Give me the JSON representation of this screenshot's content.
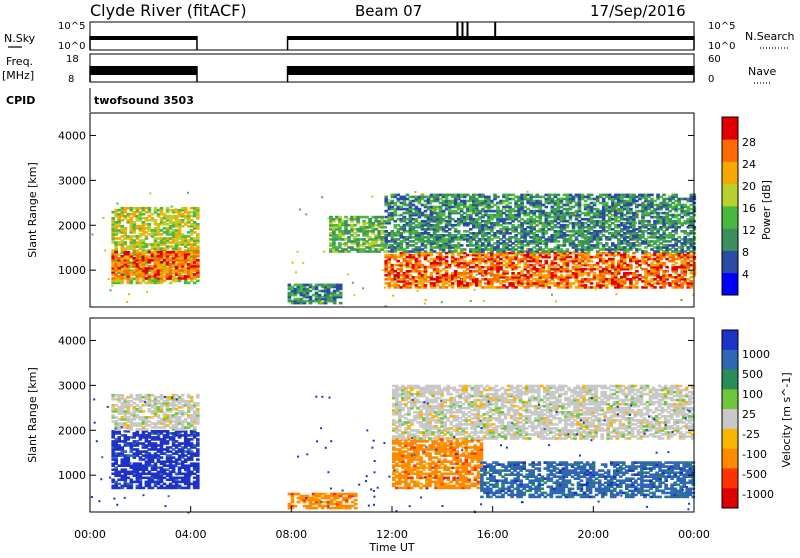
{
  "header": {
    "station": "Clyde River (fitACF)",
    "beam": "Beam 07",
    "date": "17/Sep/2016"
  },
  "strip_labels": {
    "nsky": "N.Sky",
    "nsky_ticks": [
      "10^5",
      "10^0"
    ],
    "freq": "Freq.",
    "freq_unit": "[MHz]",
    "freq_ticks": [
      "18",
      "8"
    ],
    "cpid": "CPID",
    "cpid_value": "twofsound 3503",
    "nsearch": "N.Search",
    "nsearch_ticks": [
      "10^5",
      "10^0"
    ],
    "nave": "Nave",
    "nave_ticks": [
      "60",
      "0"
    ]
  },
  "axes": {
    "time_ticks": [
      "00:00",
      "04:00",
      "08:00",
      "12:00",
      "16:00",
      "20:00",
      "00:00"
    ],
    "xlabel": "Time UT",
    "ylabel": "Slant Range [km]",
    "range_ticks": [
      "1000",
      "2000",
      "3000",
      "4000"
    ]
  },
  "colors": {
    "power": [
      "#0000ff",
      "#2a4aa6",
      "#3d8f5c",
      "#49b83f",
      "#b8d12e",
      "#f5a800",
      "#ff6a00",
      "#e00000"
    ],
    "velocity": [
      "#1e32c8",
      "#2e67b4",
      "#2a8c57",
      "#6ec63b",
      "#c8c8c8",
      "#f7b500",
      "#ff8a00",
      "#ff3300",
      "#e00000"
    ]
  },
  "chart_data": [
    {
      "type": "heatmap",
      "title": "Power",
      "xlabel": "Time UT",
      "ylabel": "Slant Range [km]",
      "x_unit": "hours UT",
      "xlim": [
        0,
        24
      ],
      "ylim": [
        180,
        4500
      ],
      "colorbar": {
        "label": "Power [dB]",
        "ticks": [
          "4",
          "8",
          "12",
          "16",
          "20",
          "24",
          "28"
        ],
        "range": [
          0,
          32
        ]
      },
      "regions": [
        {
          "t": [
            0.85,
            4.3
          ],
          "r": [
            700,
            2400
          ],
          "value": 20
        },
        {
          "t": [
            0.85,
            4.3
          ],
          "r": [
            800,
            1400
          ],
          "value": 28
        },
        {
          "t": [
            7.85,
            10.0
          ],
          "r": [
            250,
            700
          ],
          "value": 10
        },
        {
          "t": [
            9.5,
            11.7
          ],
          "r": [
            1400,
            2200
          ],
          "value": 14
        },
        {
          "t": [
            11.7,
            24.0
          ],
          "r": [
            600,
            1400
          ],
          "value": 26
        },
        {
          "t": [
            11.7,
            24.0
          ],
          "r": [
            1400,
            2700
          ],
          "value": 12
        }
      ]
    },
    {
      "type": "heatmap",
      "title": "Velocity",
      "xlabel": "Time UT",
      "ylabel": "Slant Range [km]",
      "x_unit": "hours UT",
      "xlim": [
        0,
        24
      ],
      "ylim": [
        180,
        4500
      ],
      "colorbar": {
        "label": "Velocity [m s^-1]",
        "ticks": [
          "1000",
          "500",
          "100",
          "25",
          "-25",
          "-100",
          "-500",
          "-1000"
        ]
      },
      "regions": [
        {
          "t": [
            0.85,
            4.3
          ],
          "r": [
            700,
            2000
          ],
          "value": 600
        },
        {
          "t": [
            0.85,
            4.3
          ],
          "r": [
            2000,
            2800
          ],
          "value": 0
        },
        {
          "t": [
            7.85,
            10.5
          ],
          "r": [
            250,
            600
          ],
          "value": -150
        },
        {
          "t": [
            12.0,
            15.5
          ],
          "r": [
            700,
            1800
          ],
          "value": -400
        },
        {
          "t": [
            15.5,
            24.0
          ],
          "r": [
            500,
            1300
          ],
          "value": 300
        },
        {
          "t": [
            12.0,
            24.0
          ],
          "r": [
            1800,
            3000
          ],
          "value": 0
        }
      ]
    }
  ]
}
